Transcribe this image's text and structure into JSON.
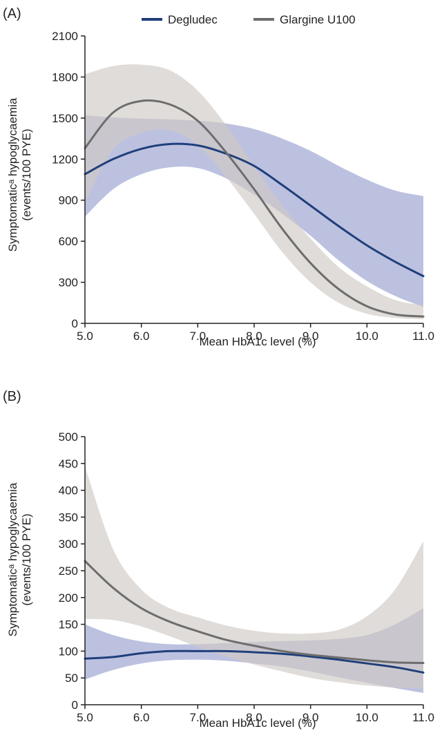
{
  "chart_data": [
    {
      "type": "line",
      "panel_label": "(A)",
      "xlabel": "Mean HbA1c level (%)",
      "ylabel_line1": "Symptomaticᵃ hypoglycaemia",
      "ylabel_line2": "(events/100 PYE)",
      "xlim": [
        5.0,
        11.0
      ],
      "ylim": [
        0,
        2100
      ],
      "x_ticks": [
        "5.0",
        "6.0",
        "7.0",
        "8.0",
        "9.0",
        "10.0",
        "11.0"
      ],
      "y_ticks": [
        "0",
        "300",
        "600",
        "900",
        "1200",
        "1500",
        "1800",
        "2100"
      ],
      "legend": {
        "position": "top-center"
      },
      "series": [
        {
          "name": "Degludec",
          "color": "#1f3f7a",
          "band_color": "#8f98cc",
          "x": [
            5.0,
            5.5,
            6.0,
            6.5,
            7.0,
            7.5,
            8.0,
            8.5,
            9.0,
            9.5,
            10.0,
            10.5,
            11.0
          ],
          "y": [
            1090,
            1200,
            1275,
            1310,
            1300,
            1240,
            1150,
            1010,
            860,
            710,
            570,
            450,
            345
          ],
          "lower": [
            780,
            980,
            1090,
            1140,
            1135,
            1060,
            940,
            800,
            640,
            460,
            310,
            200,
            120
          ],
          "upper": [
            1520,
            1505,
            1495,
            1490,
            1480,
            1460,
            1420,
            1350,
            1260,
            1150,
            1050,
            970,
            930
          ]
        },
        {
          "name": "Glargine U100",
          "color": "#6d6d6d",
          "band_color": "#cfcac5",
          "x": [
            5.0,
            5.5,
            6.0,
            6.5,
            7.0,
            7.5,
            8.0,
            8.5,
            9.0,
            9.5,
            10.0,
            10.5,
            11.0
          ],
          "y": [
            1280,
            1540,
            1625,
            1600,
            1480,
            1250,
            980,
            690,
            440,
            250,
            125,
            65,
            50
          ],
          "lower": [
            880,
            1270,
            1390,
            1410,
            1300,
            1070,
            800,
            520,
            300,
            150,
            70,
            40,
            30
          ],
          "upper": [
            1820,
            1880,
            1890,
            1850,
            1700,
            1450,
            1150,
            860,
            620,
            410,
            270,
            170,
            130
          ]
        }
      ]
    },
    {
      "type": "line",
      "panel_label": "(B)",
      "xlabel": "Mean HbA1c level (%)",
      "ylabel_line1": "Symptomaticᵃ hypoglycaemia",
      "ylabel_line2": "(events/100 PYE)",
      "xlim": [
        5.0,
        11.0
      ],
      "ylim": [
        0,
        500
      ],
      "x_ticks": [
        "5.0",
        "6.0",
        "7.0",
        "8.0",
        "9.0",
        "10.0",
        "11.0"
      ],
      "y_ticks": [
        "0",
        "50",
        "100",
        "150",
        "200",
        "250",
        "300",
        "350",
        "400",
        "450",
        "500"
      ],
      "series": [
        {
          "name": "Degludec",
          "color": "#1f3f7a",
          "band_color": "#8f98cc",
          "x": [
            5.0,
            5.5,
            6.0,
            6.5,
            7.0,
            7.5,
            8.0,
            8.5,
            9.0,
            9.5,
            10.0,
            10.5,
            11.0
          ],
          "y": [
            86,
            89,
            96,
            100,
            100,
            100,
            98,
            95,
            90,
            84,
            77,
            70,
            60
          ],
          "lower": [
            47,
            65,
            77,
            83,
            84,
            82,
            77,
            71,
            62,
            51,
            41,
            31,
            22
          ],
          "upper": [
            150,
            130,
            118,
            113,
            113,
            115,
            117,
            119,
            120,
            123,
            130,
            150,
            180
          ]
        },
        {
          "name": "Glargine U100",
          "color": "#6d6d6d",
          "band_color": "#cfcac5",
          "x": [
            5.0,
            5.5,
            6.0,
            6.5,
            7.0,
            7.5,
            8.0,
            8.5,
            9.0,
            9.5,
            10.0,
            10.5,
            11.0
          ],
          "y": [
            268,
            218,
            180,
            155,
            137,
            121,
            110,
            100,
            93,
            88,
            83,
            79,
            78
          ],
          "lower": [
            160,
            158,
            146,
            128,
            108,
            90,
            75,
            62,
            50,
            42,
            36,
            32,
            30
          ],
          "upper": [
            445,
            290,
            215,
            180,
            163,
            148,
            138,
            133,
            133,
            140,
            165,
            215,
            305
          ]
        }
      ]
    }
  ]
}
